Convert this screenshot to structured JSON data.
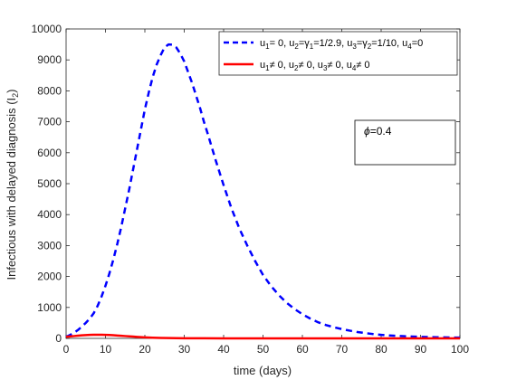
{
  "chart_data": {
    "type": "line",
    "xlabel": "time (days)",
    "ylabel_main": "Infectious with delayed diagnosis (I",
    "ylabel_sub": "2",
    "ylabel_end": ")",
    "xlim": [
      0,
      100
    ],
    "ylim": [
      0,
      10000
    ],
    "xticks": [
      0,
      10,
      20,
      30,
      40,
      50,
      60,
      70,
      80,
      90,
      100
    ],
    "yticks": [
      0,
      1000,
      2000,
      3000,
      4000,
      5000,
      6000,
      7000,
      8000,
      9000,
      10000
    ],
    "grid": false,
    "legend_position": "top-right",
    "series": [
      {
        "color": "#0000ff",
        "style": "dashed",
        "legend": [
          {
            "t": "u",
            "s": "1"
          },
          {
            "t": "= 0, u"
          },
          {
            "t": "",
            "s": "2"
          },
          {
            "t": "=γ"
          },
          {
            "t": "",
            "s": "1"
          },
          {
            "t": "=1/2.9, u"
          },
          {
            "t": "",
            "s": "3"
          },
          {
            "t": "=γ"
          },
          {
            "t": "",
            "s": "2"
          },
          {
            "t": "=1/10, u"
          },
          {
            "t": "",
            "s": "4"
          },
          {
            "t": "=0"
          }
        ],
        "x": [
          0,
          1,
          2,
          3,
          4,
          5,
          6,
          7,
          8,
          9,
          10,
          11,
          12,
          13,
          14,
          15,
          16,
          17,
          18,
          19,
          20,
          21,
          22,
          23,
          24,
          25,
          26,
          27,
          28,
          29,
          30,
          31,
          32,
          33,
          34,
          35,
          36,
          38,
          40,
          42,
          44,
          46,
          48,
          50,
          52,
          54,
          56,
          58,
          60,
          62,
          64,
          66,
          68,
          70,
          72,
          74,
          76,
          78,
          80,
          82,
          84,
          86,
          88,
          90,
          92,
          94,
          96,
          98,
          100
        ],
        "y": [
          50,
          110,
          180,
          270,
          380,
          500,
          640,
          810,
          1050,
          1350,
          1700,
          2100,
          2550,
          3050,
          3600,
          4200,
          4800,
          5450,
          6100,
          6750,
          7400,
          7950,
          8450,
          8850,
          9150,
          9400,
          9500,
          9490,
          9400,
          9200,
          8950,
          8600,
          8250,
          7850,
          7450,
          7000,
          6600,
          5750,
          4950,
          4200,
          3550,
          3000,
          2500,
          2050,
          1700,
          1400,
          1150,
          950,
          780,
          640,
          520,
          430,
          360,
          300,
          250,
          205,
          170,
          140,
          115,
          95,
          80,
          68,
          58,
          50,
          43,
          37,
          32,
          28,
          25
        ]
      },
      {
        "color": "#ff0000",
        "style": "solid",
        "legend": [
          {
            "t": "u",
            "s": "1"
          },
          {
            "t": "≠ 0, u"
          },
          {
            "t": "",
            "s": "2"
          },
          {
            "t": "≠ 0, u"
          },
          {
            "t": "",
            "s": "3"
          },
          {
            "t": "≠ 0, u"
          },
          {
            "t": "",
            "s": "4"
          },
          {
            "t": "≠ 0"
          }
        ],
        "x": [
          0,
          1,
          2,
          3,
          4,
          5,
          6,
          7,
          8,
          9,
          10,
          11,
          12,
          13,
          14,
          15,
          16,
          17,
          18,
          19,
          20,
          22,
          24,
          26,
          28,
          30,
          32,
          35,
          40,
          45,
          50,
          55,
          60,
          70,
          80,
          90,
          100
        ],
        "y": [
          50,
          62,
          75,
          87,
          98,
          107,
          113,
          117,
          118,
          117,
          114,
          108,
          101,
          93,
          84,
          75,
          66,
          57,
          49,
          41,
          34,
          23,
          15,
          10,
          6,
          4,
          3,
          2,
          1,
          1,
          0,
          0,
          0,
          0,
          0,
          0,
          0
        ]
      }
    ],
    "annotation": {
      "symbol": "ϕ",
      "text": "=0.4"
    }
  }
}
